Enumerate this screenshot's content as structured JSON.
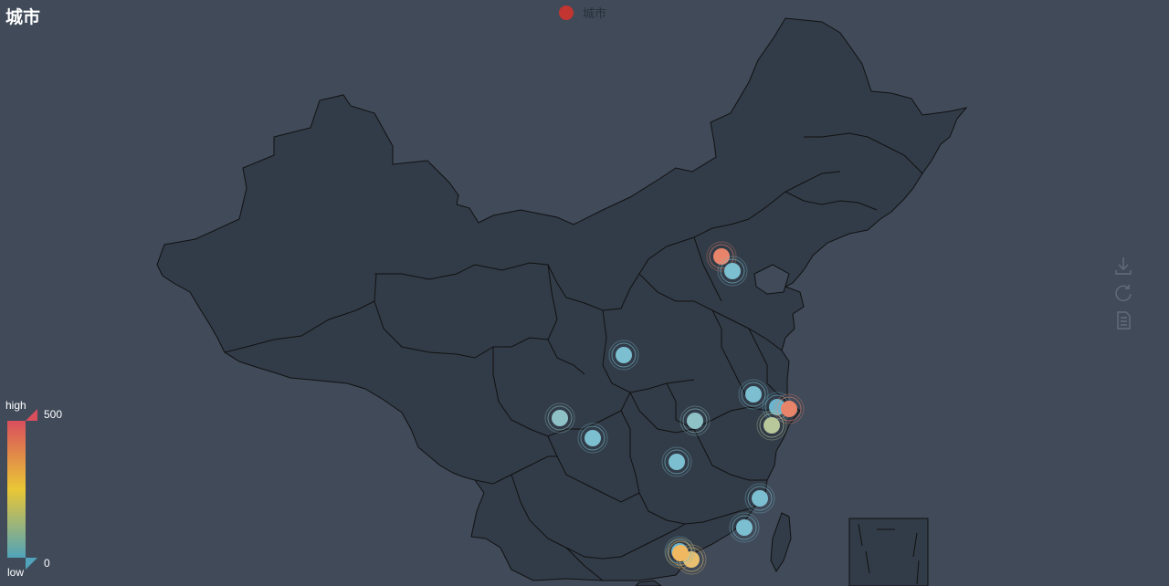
{
  "title": "城市",
  "legend": {
    "series_name": "城市",
    "color": "#c23531"
  },
  "visual_map": {
    "max_label": "500",
    "min_label": "0",
    "high_text": "high",
    "low_text": "low",
    "colors": [
      "#50a3ba",
      "#eac736",
      "#d94e5d"
    ]
  },
  "colors": {
    "background": "#404a59",
    "area": "#323c48",
    "border": "#111111"
  },
  "toolbox": [
    {
      "name": "save-as-image",
      "icon": "download-icon"
    },
    {
      "name": "restore",
      "icon": "refresh-icon"
    },
    {
      "name": "data-view",
      "icon": "document-icon"
    }
  ],
  "chart_data": {
    "type": "effect-scatter on map",
    "map": "china",
    "series": [
      {
        "name": "城市",
        "points": [
          {
            "value": 420,
            "color": "#e8846a"
          },
          {
            "value": 60,
            "color": "#7cbfd0"
          },
          {
            "value": 60,
            "color": "#7cbfd0"
          },
          {
            "value": 90,
            "color": "#8ec2c6"
          },
          {
            "value": 60,
            "color": "#7cbfd0"
          },
          {
            "value": 90,
            "color": "#8ec2c6"
          },
          {
            "value": 60,
            "color": "#7cbfd0"
          },
          {
            "value": 60,
            "color": "#7cbfd0"
          },
          {
            "value": 40,
            "color": "#6ab5cc"
          },
          {
            "value": 420,
            "color": "#e8846a"
          },
          {
            "value": 200,
            "color": "#b8c89a"
          },
          {
            "value": 60,
            "color": "#7cbfd0"
          },
          {
            "value": 60,
            "color": "#7cbfd0"
          },
          {
            "value": 260,
            "color": "#e8c070"
          },
          {
            "value": 40,
            "color": "#6ab5cc"
          },
          {
            "value": 310,
            "color": "#f0b860"
          }
        ]
      }
    ]
  }
}
